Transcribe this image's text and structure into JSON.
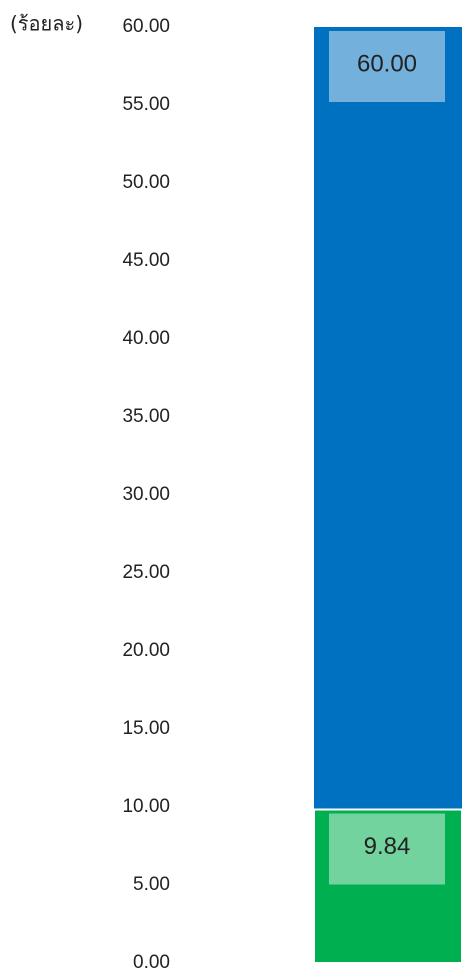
{
  "chart_data": {
    "type": "bar",
    "y_label": "(ร้อยละ)",
    "categories": [
      null
    ],
    "series": [
      {
        "color": "#0070c0",
        "values": [
          60
        ],
        "value_labels": [
          "60.00"
        ]
      },
      {
        "color": "#00b050",
        "values": [
          9.84
        ],
        "value_labels": [
          "9.84"
        ]
      }
    ],
    "ylim": [
      0,
      60
    ],
    "yticks": [
      {
        "value": 0,
        "label": "0.00"
      },
      {
        "value": 5,
        "label": "5.00"
      },
      {
        "value": 10,
        "label": "10.00"
      },
      {
        "value": 15,
        "label": "15.00"
      },
      {
        "value": 20,
        "label": "20.00"
      },
      {
        "value": 25,
        "label": "25.00"
      },
      {
        "value": 30,
        "label": "30.00"
      },
      {
        "value": 35,
        "label": "35.00"
      },
      {
        "value": 40,
        "label": "40.00"
      },
      {
        "value": 45,
        "label": "45.00"
      },
      {
        "value": 50,
        "label": "50.00"
      },
      {
        "value": 55,
        "label": "55.00"
      },
      {
        "value": 60,
        "label": "60.00"
      }
    ],
    "grid": false
  }
}
